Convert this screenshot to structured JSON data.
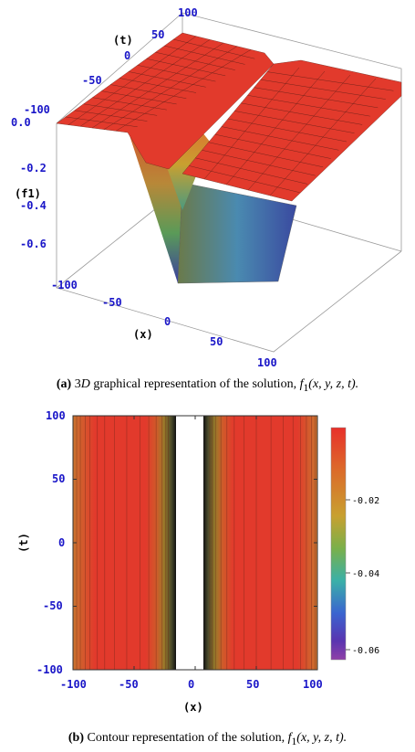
{
  "chart_data": [
    {
      "type": "surface",
      "panel_label": "(a)",
      "caption_text": "3D graphical representation of the solution, f1(x, y, z, t).",
      "caption_parts": {
        "label": "(a)",
        "lead": "3",
        "italic_d": "D",
        "text": " graphical representation of the solution, ",
        "func": "f",
        "sub": "1",
        "args": "(x, y, z, t)."
      },
      "axes": {
        "x": {
          "label": "(x)",
          "range": [
            -100,
            100
          ],
          "ticks": [
            "-100",
            "-50",
            "0",
            "50",
            "100"
          ]
        },
        "t": {
          "label": "(t)",
          "range": [
            -100,
            100
          ],
          "ticks": [
            "-100",
            "-50",
            "0",
            "50",
            "100"
          ]
        },
        "z": {
          "label": "(f1)",
          "range": [
            -0.7,
            0.0
          ],
          "ticks": [
            "0.0",
            "-0.2",
            "-0.4",
            "-0.6"
          ]
        }
      },
      "surface": {
        "description_values": {
          "plateau": 0.0,
          "trough_min": -0.65,
          "trough_x_left": -20,
          "trough_x_right": 10
        },
        "colors": {
          "plateau": "#e8302a",
          "trough": [
            "#d3402b",
            "#a88a3a",
            "#5aa85a",
            "#3a6ac8",
            "#3b3b9e"
          ]
        }
      }
    },
    {
      "type": "contour",
      "panel_label": "(b)",
      "caption_parts": {
        "label": "(b)",
        "text": " Contour representation of the solution, ",
        "func": "f",
        "sub": "1",
        "args": "(x, y, z, t)."
      },
      "axes": {
        "x": {
          "label": "(x)",
          "range": [
            -100,
            100
          ],
          "ticks": [
            "-100",
            "-50",
            "0",
            "50",
            "100"
          ]
        },
        "y": {
          "label": "(t)",
          "range": [
            -100,
            100
          ],
          "ticks": [
            "100",
            "50",
            "0",
            "-50",
            "-100"
          ]
        }
      },
      "regions": {
        "white_gap": [
          -20,
          10
        ],
        "dark_edge_left": -22,
        "dark_edge_right": 12
      },
      "colorbar": {
        "ticks": [
          "-0.02",
          "-0.04",
          "-0.06"
        ],
        "tick_values": [
          -0.02,
          -0.04,
          -0.06
        ],
        "range": [
          -0.066,
          -0.002
        ],
        "colors": [
          "#e8302a",
          "#d86a2a",
          "#c89a32",
          "#7aa84a",
          "#3aa8a0",
          "#3a6ad0",
          "#5a3ab0",
          "#8a3aa8"
        ]
      }
    }
  ]
}
